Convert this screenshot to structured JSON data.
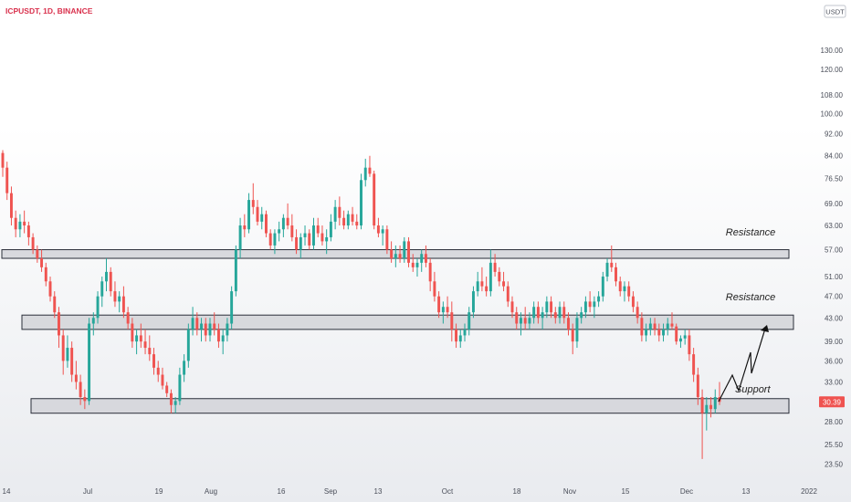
{
  "header": {
    "symbol_title": "ICPUSDT, 1D, BINANCE",
    "currency_badge": "USDT"
  },
  "colors": {
    "up": "#26a69a",
    "down": "#ef5350",
    "title": "#d9314d",
    "zone_fill": "#d2d4d8",
    "zone_stroke": "#2a2e39",
    "axis_text": "#4a4e59",
    "price_label_bg": "#ef5350"
  },
  "chart_data": {
    "type": "candlestick",
    "title": "ICPUSDT, 1D, BINANCE",
    "y_scale": "log",
    "ylim": [
      22.5,
      145
    ],
    "y_ticks": [
      "130.00",
      "120.00",
      "108.00",
      "100.00",
      "92.00",
      "84.00",
      "76.50",
      "69.00",
      "63.00",
      "57.00",
      "51.00",
      "47.00",
      "43.00",
      "39.00",
      "36.00",
      "33.00",
      "30.39",
      "28.00",
      "25.50",
      "23.50"
    ],
    "x_ticks": [
      "14",
      "Jul",
      "19",
      "Aug",
      "16",
      "Sep",
      "13",
      "Oct",
      "18",
      "Nov",
      "15",
      "Dec",
      "13",
      "2022"
    ],
    "current_price": "30.39",
    "candles": [
      [
        85,
        86,
        77,
        80
      ],
      [
        80,
        82,
        70,
        72
      ],
      [
        72,
        74,
        63,
        65
      ],
      [
        65,
        67,
        60,
        62
      ],
      [
        62,
        66,
        60,
        64
      ],
      [
        64,
        67,
        61,
        63
      ],
      [
        63,
        64,
        58,
        60
      ],
      [
        60,
        61,
        56,
        57
      ],
      [
        57,
        58,
        54,
        55
      ],
      [
        55,
        57,
        52,
        53
      ],
      [
        53,
        54,
        49,
        50
      ],
      [
        50,
        51,
        46,
        47
      ],
      [
        47,
        48,
        43,
        44
      ],
      [
        44,
        45,
        38,
        40
      ],
      [
        40,
        41,
        34,
        36
      ],
      [
        36,
        40,
        35,
        38
      ],
      [
        38,
        39,
        33,
        34
      ],
      [
        34,
        36,
        32,
        33
      ],
      [
        33,
        34,
        30,
        31
      ],
      [
        31,
        32,
        29.5,
        30.5
      ],
      [
        30.5,
        43,
        30,
        42
      ],
      [
        42,
        44,
        40,
        43
      ],
      [
        43,
        48,
        42,
        47
      ],
      [
        47,
        51,
        45,
        50
      ],
      [
        50,
        55,
        48,
        52
      ],
      [
        52,
        53,
        47,
        48
      ],
      [
        48,
        50,
        45,
        46
      ],
      [
        46,
        48,
        44,
        47
      ],
      [
        47,
        49,
        43,
        44
      ],
      [
        44,
        45,
        41,
        42
      ],
      [
        42,
        43,
        38,
        39
      ],
      [
        39,
        41,
        37,
        40
      ],
      [
        40,
        42,
        38,
        39
      ],
      [
        39,
        41,
        37,
        38
      ],
      [
        38,
        40,
        36,
        37
      ],
      [
        37,
        38,
        34,
        35
      ],
      [
        35,
        36,
        33,
        34
      ],
      [
        34,
        35,
        32,
        32.5
      ],
      [
        32.5,
        33,
        31,
        31.5
      ],
      [
        31.5,
        32,
        29,
        30
      ],
      [
        30,
        31,
        29,
        30.5
      ],
      [
        30.5,
        35,
        30,
        34
      ],
      [
        34,
        37,
        33,
        36
      ],
      [
        36,
        42,
        35,
        41
      ],
      [
        41,
        45,
        40,
        43
      ],
      [
        43,
        44,
        40,
        41
      ],
      [
        41,
        43,
        39,
        42
      ],
      [
        42,
        43,
        39,
        40
      ],
      [
        40,
        43,
        39,
        42
      ],
      [
        42,
        44,
        40,
        41
      ],
      [
        41,
        42,
        38,
        39
      ],
      [
        39,
        41,
        37,
        40
      ],
      [
        40,
        43,
        39,
        42
      ],
      [
        42,
        49,
        41,
        48
      ],
      [
        48,
        58,
        47,
        57
      ],
      [
        57,
        65,
        55,
        63
      ],
      [
        63,
        66,
        60,
        62
      ],
      [
        62,
        72,
        61,
        70
      ],
      [
        70,
        75,
        66,
        68
      ],
      [
        68,
        70,
        63,
        64
      ],
      [
        64,
        68,
        62,
        66
      ],
      [
        66,
        67,
        60,
        61
      ],
      [
        61,
        62,
        57,
        58
      ],
      [
        58,
        62,
        56,
        61
      ],
      [
        61,
        64,
        59,
        62
      ],
      [
        62,
        66,
        60,
        65
      ],
      [
        65,
        69,
        62,
        63
      ],
      [
        63,
        66,
        59,
        60
      ],
      [
        60,
        62,
        56,
        57
      ],
      [
        57,
        61,
        55,
        60
      ],
      [
        60,
        63,
        58,
        61
      ],
      [
        61,
        62,
        57,
        58
      ],
      [
        58,
        65,
        57,
        63
      ],
      [
        63,
        65,
        60,
        61
      ],
      [
        61,
        63,
        58,
        59
      ],
      [
        59,
        62,
        56,
        60
      ],
      [
        60,
        66,
        59,
        64
      ],
      [
        64,
        70,
        62,
        68
      ],
      [
        68,
        71,
        63,
        65
      ],
      [
        65,
        67,
        62,
        63
      ],
      [
        63,
        67,
        62,
        66
      ],
      [
        66,
        68,
        63,
        64
      ],
      [
        64,
        66,
        62,
        63
      ],
      [
        63,
        78,
        62,
        76
      ],
      [
        76,
        83,
        74,
        80
      ],
      [
        80,
        84,
        77,
        78
      ],
      [
        78,
        79,
        62,
        63
      ],
      [
        63,
        65,
        60,
        61
      ],
      [
        61,
        63,
        58,
        62
      ],
      [
        62,
        63,
        56,
        57
      ],
      [
        57,
        59,
        54,
        55
      ],
      [
        55,
        58,
        53,
        56
      ],
      [
        56,
        58,
        54,
        55
      ],
      [
        55,
        60,
        54,
        59
      ],
      [
        59,
        60,
        53,
        54
      ],
      [
        54,
        56,
        52,
        53
      ],
      [
        53,
        55,
        51,
        54
      ],
      [
        54,
        57,
        52,
        56
      ],
      [
        56,
        58,
        53,
        54
      ],
      [
        54,
        55,
        48,
        50
      ],
      [
        50,
        52,
        46,
        47
      ],
      [
        47,
        48,
        43,
        44
      ],
      [
        44,
        46,
        42,
        45
      ],
      [
        45,
        47,
        43,
        44
      ],
      [
        44,
        46,
        39,
        41
      ],
      [
        41,
        42,
        38,
        39
      ],
      [
        39,
        41,
        38,
        40
      ],
      [
        40,
        42,
        39,
        41
      ],
      [
        41,
        45,
        40,
        44
      ],
      [
        44,
        49,
        43,
        48
      ],
      [
        48,
        52,
        47,
        50
      ],
      [
        50,
        53,
        48,
        49
      ],
      [
        49,
        51,
        47,
        48
      ],
      [
        48,
        57,
        47,
        54
      ],
      [
        54,
        56,
        51,
        52
      ],
      [
        52,
        53,
        49,
        50
      ],
      [
        50,
        52,
        48,
        49
      ],
      [
        49,
        50,
        45,
        46
      ],
      [
        46,
        47,
        43,
        44
      ],
      [
        44,
        45,
        41,
        42
      ],
      [
        42,
        44,
        40,
        43
      ],
      [
        43,
        45,
        41,
        42
      ],
      [
        42,
        44,
        41,
        43
      ],
      [
        43,
        46,
        42,
        45
      ],
      [
        45,
        46,
        42,
        43
      ],
      [
        43,
        45,
        41,
        44
      ],
      [
        44,
        47,
        43,
        46
      ],
      [
        46,
        47,
        43,
        44
      ],
      [
        44,
        45,
        42,
        43
      ],
      [
        43,
        46,
        42,
        45
      ],
      [
        45,
        46,
        42,
        43
      ],
      [
        43,
        44,
        40,
        41
      ],
      [
        41,
        42,
        37,
        39
      ],
      [
        39,
        44,
        38,
        43
      ],
      [
        43,
        45,
        42,
        44
      ],
      [
        44,
        47,
        43,
        46
      ],
      [
        46,
        48,
        44,
        45
      ],
      [
        45,
        47,
        43,
        46
      ],
      [
        46,
        48,
        45,
        47
      ],
      [
        47,
        52,
        46,
        51
      ],
      [
        51,
        55,
        50,
        54
      ],
      [
        54,
        58,
        52,
        53
      ],
      [
        53,
        54,
        49,
        50
      ],
      [
        50,
        51,
        47,
        48
      ],
      [
        48,
        50,
        46,
        49
      ],
      [
        49,
        50,
        46,
        47
      ],
      [
        47,
        48,
        44,
        45
      ],
      [
        45,
        46,
        42,
        43
      ],
      [
        43,
        44,
        39,
        40
      ],
      [
        40,
        42,
        39,
        41
      ],
      [
        41,
        43,
        40,
        42
      ],
      [
        42,
        43,
        40,
        41
      ],
      [
        41,
        42,
        39,
        40
      ],
      [
        40,
        42,
        39,
        41
      ],
      [
        41,
        43,
        40,
        42
      ],
      [
        42,
        44,
        41,
        41.5
      ],
      [
        41.5,
        42,
        38.5,
        39
      ],
      [
        39,
        40,
        38,
        39.5
      ],
      [
        39.5,
        41,
        38.5,
        40
      ],
      [
        40,
        41,
        36,
        37
      ],
      [
        37,
        38,
        33,
        34
      ],
      [
        34,
        35,
        30,
        31
      ],
      [
        31,
        32,
        24,
        29
      ],
      [
        29,
        31,
        27,
        30
      ],
      [
        30,
        31,
        28.5,
        29.5
      ],
      [
        29.5,
        32,
        29,
        31
      ],
      [
        31,
        33,
        30,
        30.39
      ]
    ],
    "zones": [
      {
        "low": 55,
        "high": 57,
        "label": "Resistance"
      },
      {
        "low": 41,
        "high": 43.5,
        "label": "Resistance"
      },
      {
        "low": 29,
        "high": 30.8,
        "label": "Support"
      }
    ],
    "projection_label": "Support"
  }
}
